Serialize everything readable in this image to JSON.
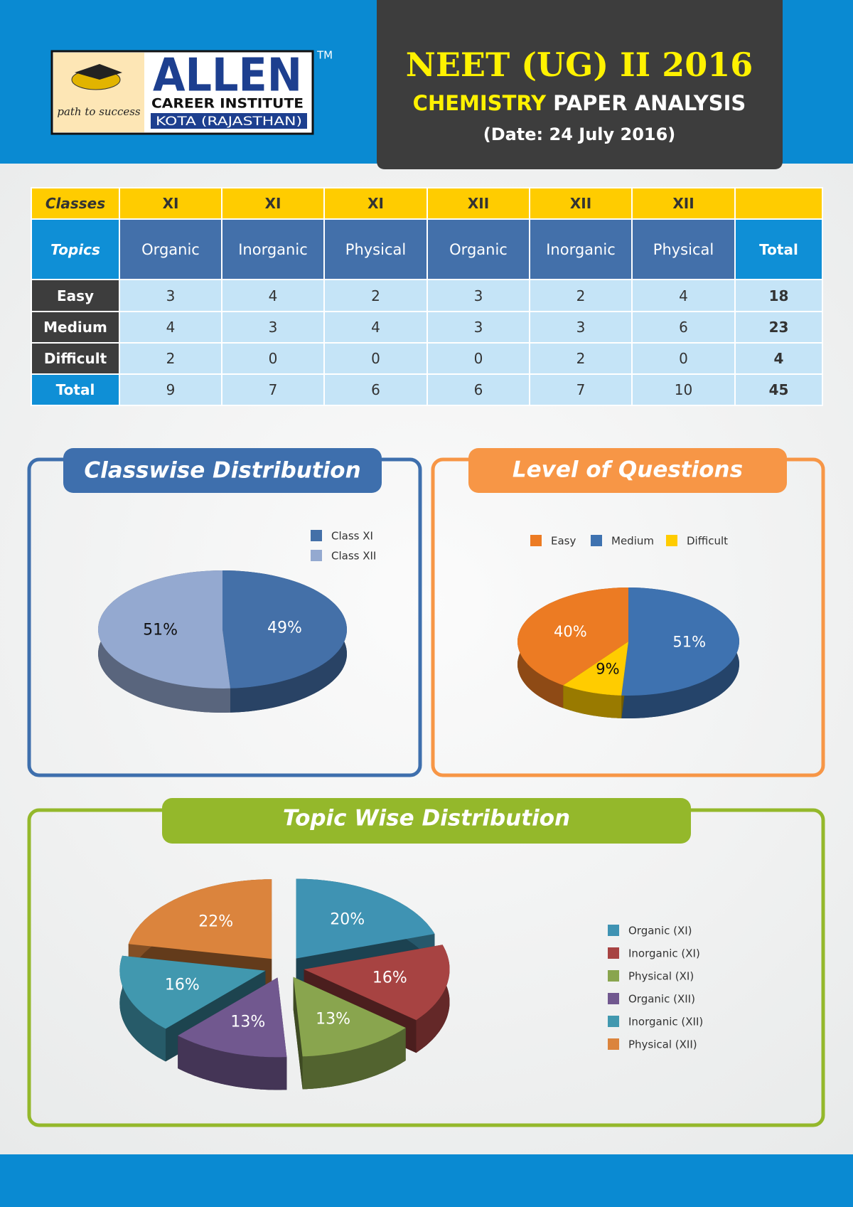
{
  "header": {
    "logo": {
      "brand": "ALLEN",
      "name": "CAREER INSTITUTE",
      "location": "KOTA (RAJASTHAN)",
      "tagline": "path to success",
      "trademark": "TM"
    },
    "title": "NEET (UG) II 2016",
    "subtitle_highlight": "CHEMISTRY",
    "subtitle": "PAPER ANALYSIS",
    "date": "(Date: 24 July 2016)"
  },
  "table": {
    "classes": [
      "Classes",
      "XI",
      "XI",
      "XI",
      "XII",
      "XII",
      "XII"
    ],
    "topics": [
      "Topics",
      "Organic",
      "Inorganic",
      "Physical",
      "Organic",
      "Inorganic",
      "Physical",
      "Total"
    ],
    "rows": [
      [
        "Easy",
        3,
        4,
        2,
        3,
        2,
        4,
        18
      ],
      [
        "Medium",
        4,
        3,
        4,
        3,
        3,
        6,
        23
      ],
      [
        "Difficult",
        2,
        0,
        0,
        0,
        2,
        0,
        4
      ],
      [
        "Total",
        9,
        7,
        6,
        6,
        7,
        10,
        45
      ]
    ]
  },
  "chart_data": [
    {
      "type": "pie",
      "title": "Classwise Distribution",
      "categories": [
        "Class XI",
        "Class XII"
      ],
      "values": [
        49,
        51
      ],
      "value_labels": [
        "49%",
        "51%"
      ],
      "colors": [
        "#4470a8",
        "#94a9d0"
      ]
    },
    {
      "type": "pie",
      "title": "Level of Questions",
      "categories": [
        "Easy",
        "Medium",
        "Difficult"
      ],
      "values": [
        40,
        51,
        9
      ],
      "value_labels": [
        "40%",
        "51%",
        "9%"
      ],
      "colors": [
        "#ec7b23",
        "#3e72b0",
        "#ffcc00"
      ]
    },
    {
      "type": "pie",
      "title": "Topic Wise Distribution",
      "categories": [
        "Organic (XI)",
        "Inorganic (XI)",
        "Physical (XI)",
        "Organic (XII)",
        "Inorganic (XII)",
        "Physical (XII)"
      ],
      "values": [
        20,
        16,
        13,
        13,
        16,
        22
      ],
      "value_labels": [
        "20%",
        "16%",
        "13%",
        "13%",
        "16%",
        "22%"
      ],
      "colors": [
        "#3f93b3",
        "#a74342",
        "#89a54e",
        "#71588f",
        "#4198af",
        "#db843d"
      ]
    }
  ]
}
